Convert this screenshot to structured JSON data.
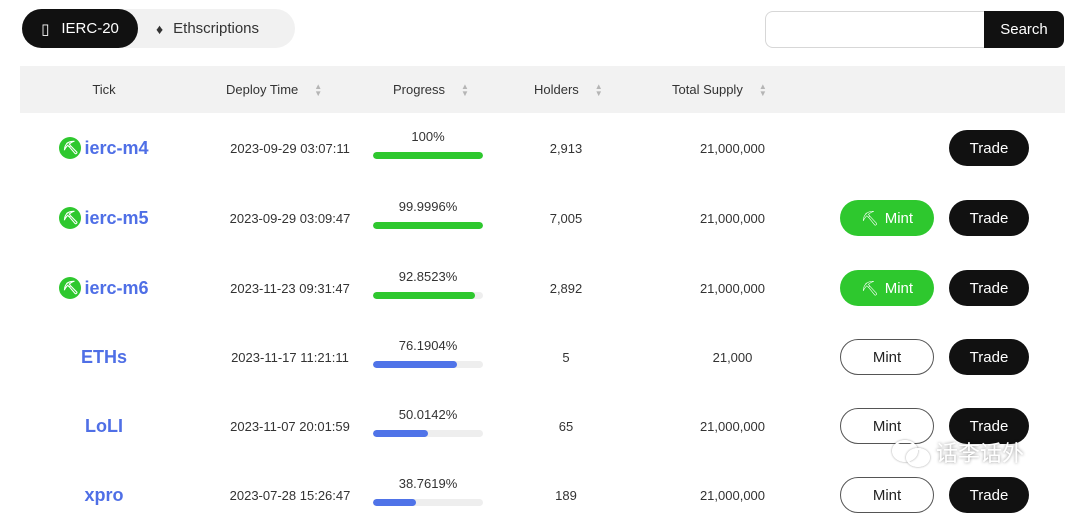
{
  "tabs": [
    {
      "label": "IERC-20",
      "icon": "bar-icon"
    },
    {
      "label": "Ethscriptions",
      "icon": "ethereum-icon"
    }
  ],
  "search": {
    "placeholder": "",
    "value": "",
    "button_label": "Search"
  },
  "table": {
    "columns": [
      "Tick",
      "Deploy Time",
      "Progress",
      "Holders",
      "Total Supply"
    ],
    "rows": [
      {
        "tick": "ierc-m4",
        "pow": true,
        "deploy_time": "2023-09-29 03:07:11",
        "progress_label": "100%",
        "progress": 1.0,
        "bar_color": "#2ec82e",
        "holders": "2,913",
        "total_supply": "21,000,000",
        "mint": null,
        "trade": "Trade"
      },
      {
        "tick": "ierc-m5",
        "pow": true,
        "deploy_time": "2023-09-29 03:09:47",
        "progress_label": "99.9996%",
        "progress": 0.999996,
        "bar_color": "#2ec82e",
        "holders": "7,005",
        "total_supply": "21,000,000",
        "mint": "Mint",
        "mint_style": "green",
        "trade": "Trade"
      },
      {
        "tick": "ierc-m6",
        "pow": true,
        "deploy_time": "2023-11-23 09:31:47",
        "progress_label": "92.8523%",
        "progress": 0.928523,
        "bar_color": "#2ec82e",
        "holders": "2,892",
        "total_supply": "21,000,000",
        "mint": "Mint",
        "mint_style": "green",
        "trade": "Trade"
      },
      {
        "tick": "ETHs",
        "pow": false,
        "deploy_time": "2023-11-17 11:21:11",
        "progress_label": "76.1904%",
        "progress": 0.761904,
        "bar_color": "#4f73e8",
        "holders": "5",
        "total_supply": "21,000",
        "mint": "Mint",
        "mint_style": "outline",
        "trade": "Trade"
      },
      {
        "tick": "LoLI",
        "pow": false,
        "deploy_time": "2023-11-07 20:01:59",
        "progress_label": "50.0142%",
        "progress": 0.500142,
        "bar_color": "#4f73e8",
        "holders": "65",
        "total_supply": "21,000,000",
        "mint": "Mint",
        "mint_style": "outline",
        "trade": "Trade"
      },
      {
        "tick": "xpro",
        "pow": false,
        "deploy_time": "2023-07-28 15:26:47",
        "progress_label": "38.7619%",
        "progress": 0.387619,
        "bar_color": "#4f73e8",
        "holders": "189",
        "total_supply": "21,000,000",
        "mint": "Mint",
        "mint_style": "outline",
        "trade": "Trade"
      }
    ]
  },
  "watermark": {
    "text": "话李话外",
    "icon": "wechat-icon"
  }
}
